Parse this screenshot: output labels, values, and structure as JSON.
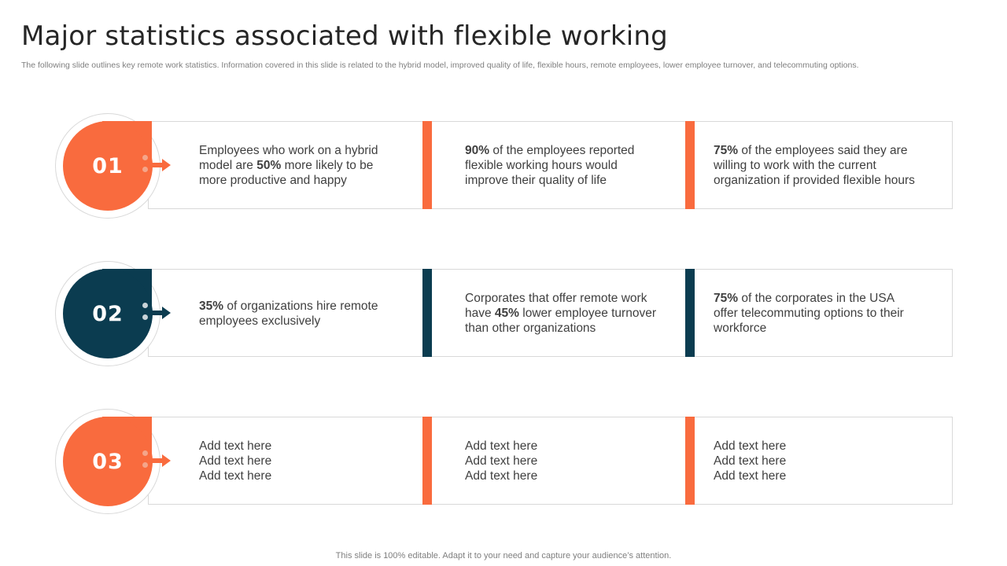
{
  "page": {
    "title": "Major statistics associated with flexible working",
    "subtitle": "The following slide outlines key remote work statistics. Information covered in this slide is related to the hybrid model, improved quality of life, flexible hours, remote employees, lower employee turnover, and telecommuting options.",
    "footer": "This slide is 100% editable. Adapt it to your need and capture your audience’s attention."
  },
  "colors": {
    "orange": "#f96b3e",
    "navy": "#0b3c50",
    "light_dot": "#f4a58a",
    "light_dot_navy": "#c9d3d8"
  },
  "rows": [
    {
      "number": "01",
      "accent": "#f96b3e",
      "stats": [
        {
          "pre": "Employees who work on a hybrid model are ",
          "bold": "50%",
          "post": " more likely to be more productive and happy"
        },
        {
          "pre": "",
          "bold": "90%",
          "post": " of the employees reported flexible working hours would improve their quality of life"
        },
        {
          "pre": "",
          "bold": "75%",
          "post": " of the employees said they are willing to work with the current organization if provided flexible hours"
        }
      ]
    },
    {
      "number": "02",
      "accent": "#0b3c50",
      "stats": [
        {
          "pre": "",
          "bold": "35%",
          "post": " of organizations hire remote employees exclusively"
        },
        {
          "pre": "Corporates that offer remote work have ",
          "bold": "45%",
          "post": " lower employee turnover than other organizations"
        },
        {
          "pre": "",
          "bold": "75%",
          "post": " of the corporates in the USA offer telecommuting options to their workforce"
        }
      ]
    },
    {
      "number": "03",
      "accent": "#f96b3e",
      "stats": [
        {
          "pre": "Add text here Add text here Add text here",
          "bold": "",
          "post": ""
        },
        {
          "pre": "Add text here Add text here Add text here",
          "bold": "",
          "post": ""
        },
        {
          "pre": "Add text here Add text here Add text here",
          "bold": "",
          "post": ""
        }
      ]
    }
  ]
}
